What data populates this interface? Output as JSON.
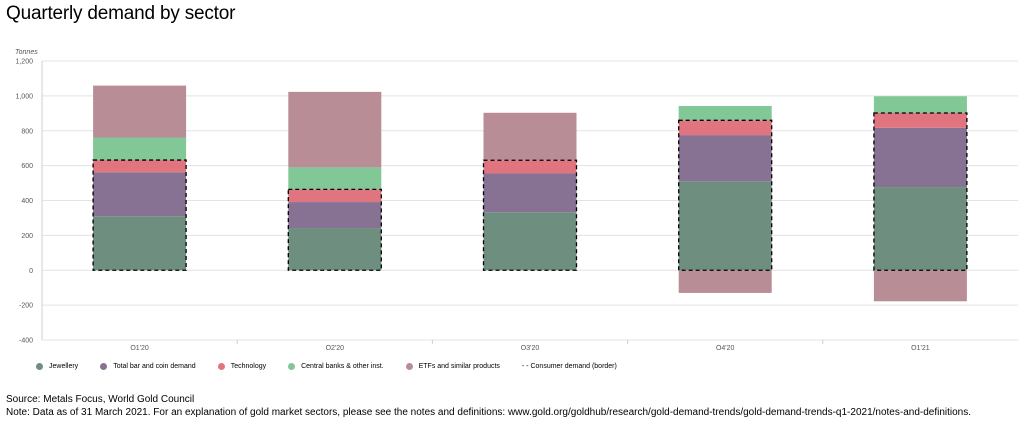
{
  "title": "Quarterly demand by sector",
  "source_text": "Source: Metals Focus, World Gold Council",
  "note_text": "Note: Data as of 31 March 2021. For an explanation of gold market sectors, please see the notes and definitions: www.gold.org/goldhub/research/gold-demand-trends/gold-demand-trends-q1-2021/notes-and-definitions.",
  "chart_data": {
    "type": "bar",
    "stacked": true,
    "ylabel": "Tonnes",
    "ylim": [
      -400,
      1200
    ],
    "yticks": [
      -400,
      -200,
      0,
      200,
      400,
      600,
      800,
      1000,
      1200
    ],
    "ytick_labels": [
      "-400",
      "-200",
      "0",
      "200",
      "400",
      "600",
      "800",
      "1,000",
      "1,200"
    ],
    "grid": true,
    "legend_position": "bottom",
    "categories": [
      "Q1'20",
      "Q2'20",
      "Q3'20",
      "Q4'20",
      "Q1'21"
    ],
    "series": [
      {
        "name": "Jewellery",
        "color": "#6e8f80",
        "values": [
          310,
          242,
          333,
          510,
          477
        ]
      },
      {
        "name": "Total bar and coin demand",
        "color": "#877294",
        "values": [
          252,
          149,
          222,
          265,
          340
        ]
      },
      {
        "name": "Technology",
        "color": "#e07580",
        "values": [
          70,
          73,
          76,
          85,
          85
        ]
      },
      {
        "name": "Central banks & other inst.",
        "color": "#82c796",
        "values": [
          129,
          126,
          0,
          82,
          96
        ]
      },
      {
        "name": "ETFs and similar products",
        "color": "#b88d96",
        "values": [
          298,
          433,
          272,
          -130,
          -178
        ]
      }
    ],
    "consumer_demand": {
      "name": "Consumer demand (border)",
      "values": [
        632,
        464,
        631,
        860,
        902
      ]
    },
    "legend_border_label": "- - Consumer demand (border)"
  }
}
